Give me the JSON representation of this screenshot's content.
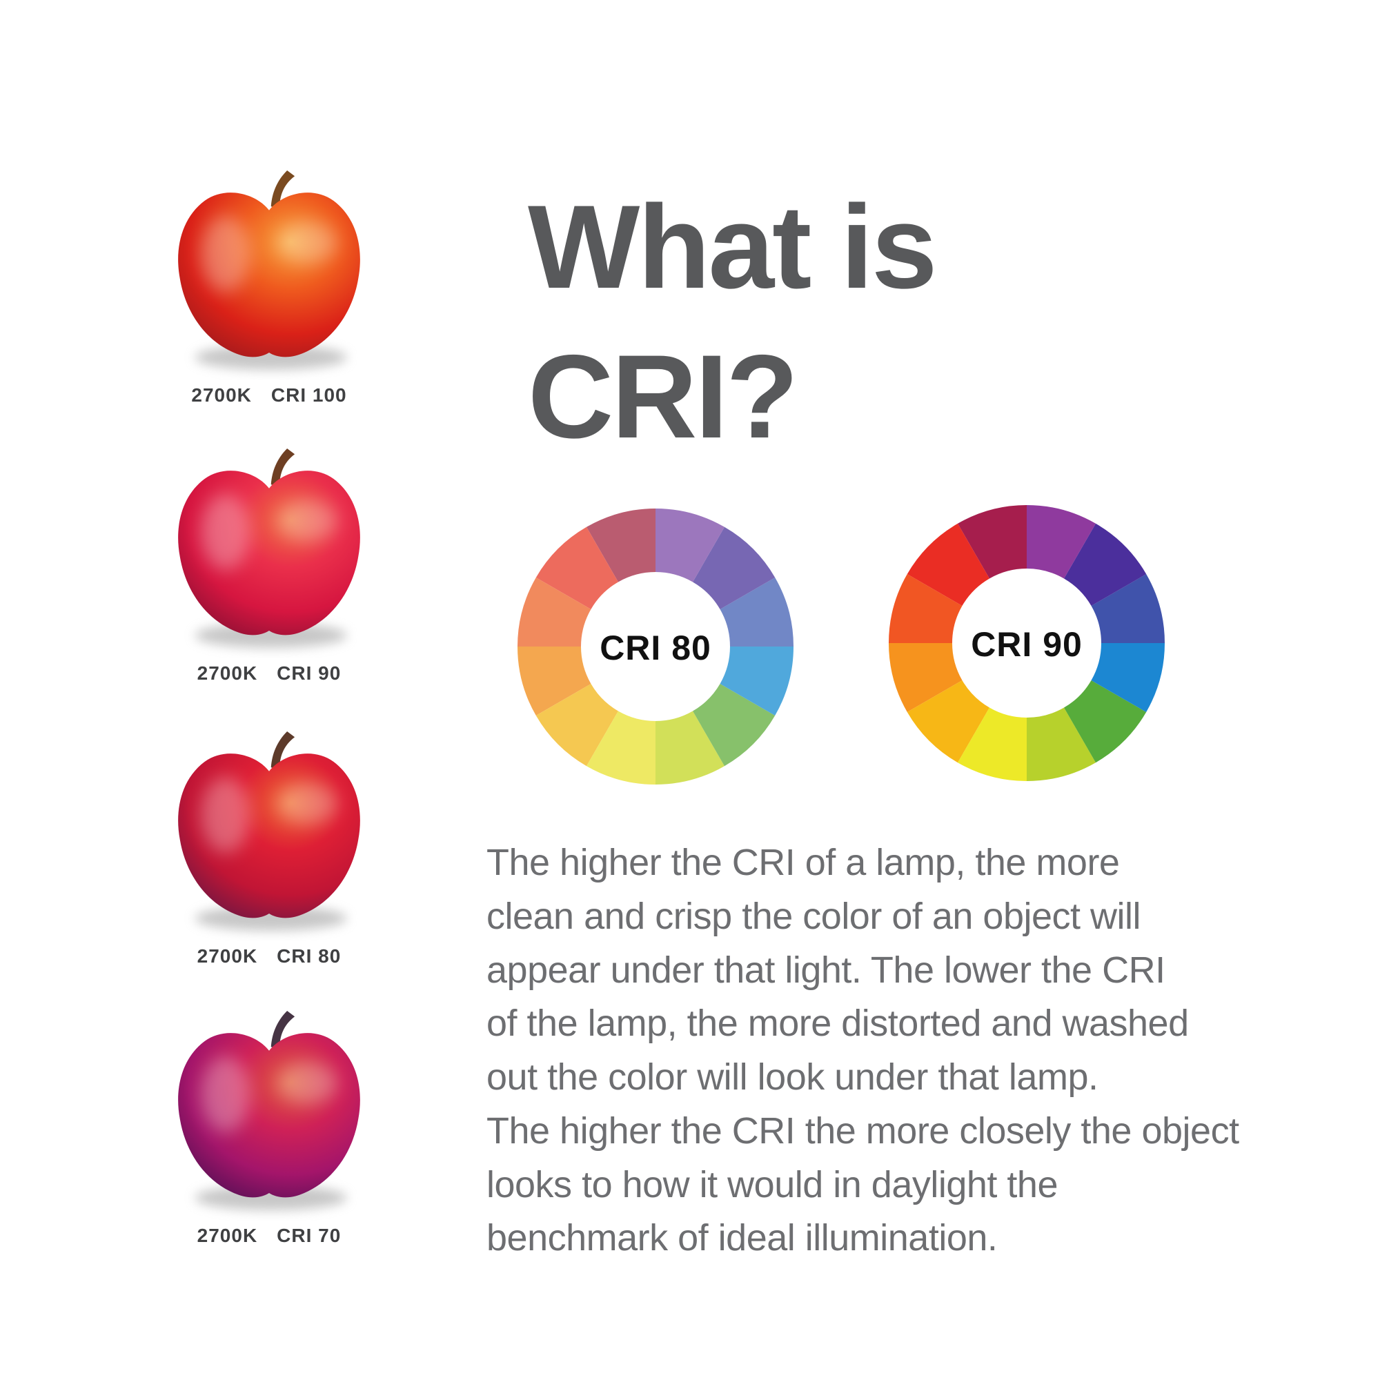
{
  "page": {
    "background": "#ffffff"
  },
  "title": {
    "text": "What is\nCRI?",
    "color": "#58595b"
  },
  "apples": [
    {
      "kelvin": "2700K",
      "cri": "CRI 100",
      "gradient": {
        "highlight": "#f7a43c",
        "light": "#ef5a1e",
        "main": "#da2118",
        "dark": "#a01a1d"
      },
      "stem_color": "#7a4a20"
    },
    {
      "kelvin": "2700K",
      "cri": "CRI 90",
      "gradient": {
        "highlight": "#ef7140",
        "light": "#ea2f4b",
        "main": "#d61640",
        "dark": "#8e1034"
      },
      "stem_color": "#6e3f23"
    },
    {
      "kelvin": "2700K",
      "cri": "CRI 80",
      "gradient": {
        "highlight": "#ee6a31",
        "light": "#de1f35",
        "main": "#c11535",
        "dark": "#6f1742"
      },
      "stem_color": "#5d3a2a"
    },
    {
      "kelvin": "2700K",
      "cri": "CRI 70",
      "gradient": {
        "highlight": "#e05a3a",
        "light": "#cf2157",
        "main": "#a4156a",
        "dark": "#571055"
      },
      "stem_color": "#463444"
    }
  ],
  "label_color": "#3f4042",
  "wheels": [
    {
      "label": "CRI 80",
      "segment_colors": [
        "#9c77bd",
        "#7767b3",
        "#7187c6",
        "#50a8dc",
        "#87c16b",
        "#d2e059",
        "#eee964",
        "#f5c851",
        "#f4a74f",
        "#f18a5d",
        "#ed6b5d",
        "#ba5c70"
      ],
      "text_color": "#111111"
    },
    {
      "label": "CRI 90",
      "segment_colors": [
        "#8f3a9e",
        "#4b2f9c",
        "#4053ab",
        "#1c87d2",
        "#57ac3b",
        "#b7d12c",
        "#ede928",
        "#f7b716",
        "#f6931e",
        "#f15623",
        "#ea2d24",
        "#a61e4d"
      ],
      "text_color": "#111111"
    }
  ],
  "paragraph": {
    "text": "The higher the CRI of a lamp, the more\nclean and crisp the color of an object will\nappear under that light. The lower the CRI\nof the lamp, the more distorted and washed\nout the color will look under that lamp.\nThe higher the CRI the more closely the object\nlooks to how it would in daylight the\nbenchmark of ideal illumination.",
    "color": "#6d6e71"
  }
}
